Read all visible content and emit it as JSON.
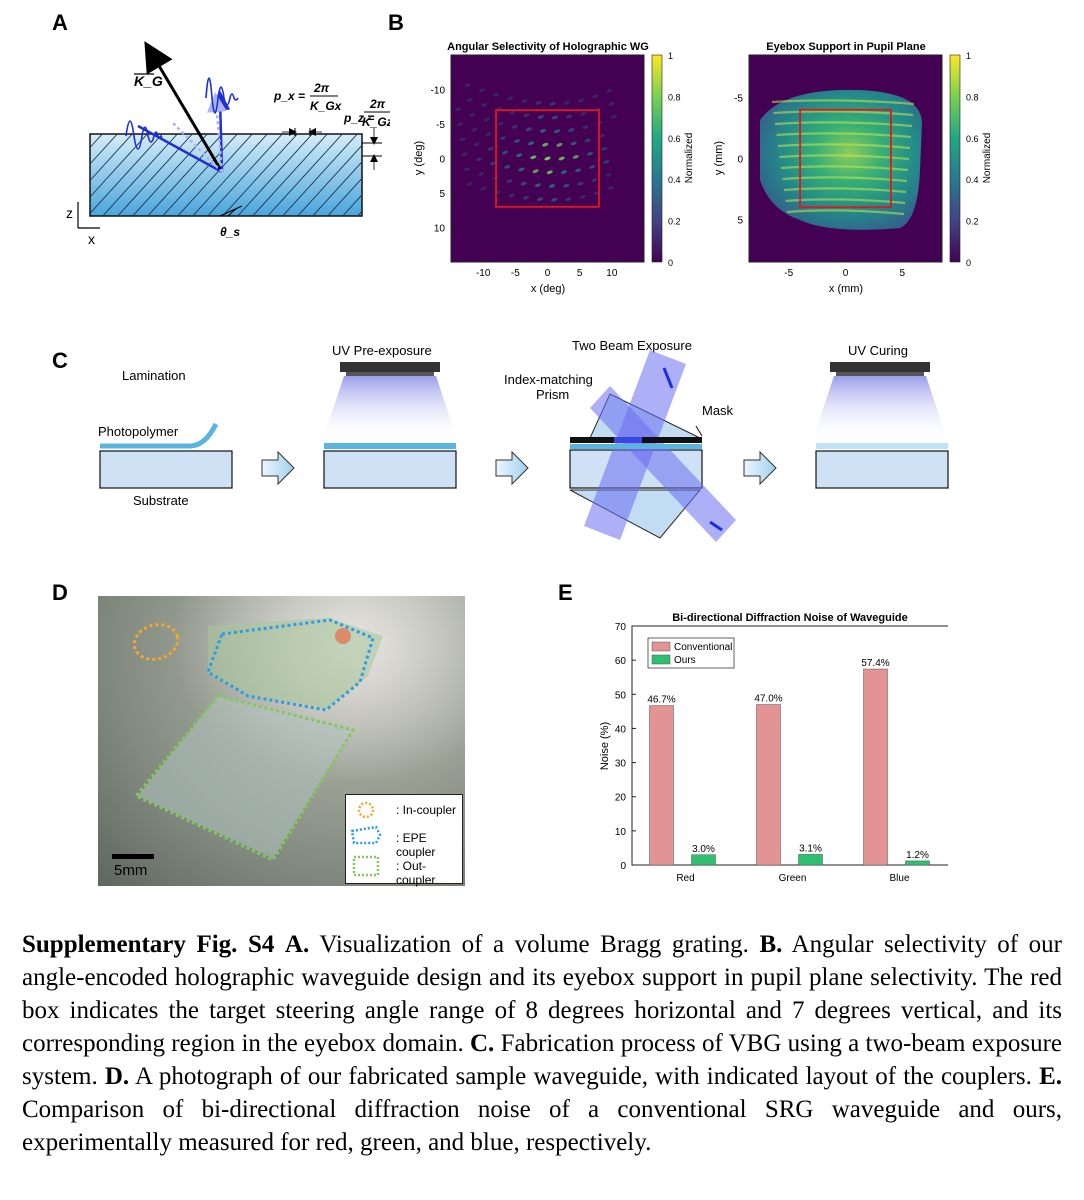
{
  "panels": {
    "A": {
      "letter": "A",
      "vector_label": "K_G",
      "px_label": "p_x =",
      "px_num": "2π",
      "px_den": "K_Gx",
      "pz_label": "p_z =",
      "pz_num": "2π",
      "pz_den": "K_Gz",
      "z_axis": "z",
      "x_axis": "x",
      "theta_label": "θ_s"
    },
    "B": {
      "letter": "B",
      "colorbar_label": "Normalized",
      "colorbar_ticks": [
        "1",
        "0.8",
        "0.6",
        "0.4",
        "0.2",
        "0"
      ]
    },
    "C": {
      "letter": "C",
      "lamination": "Lamination",
      "photopolymer": "Photopolymer",
      "substrate": "Substrate",
      "uv_pre": "UV Pre-exposure",
      "two_beam": "Two Beam Exposure",
      "prism_line1": "Index-matching",
      "prism_line2": "Prism",
      "mask": "Mask",
      "uv_curing": "UV Curing"
    },
    "D": {
      "letter": "D",
      "scale_label": "5mm",
      "legend": [
        ": In-coupler",
        ": EPE coupler",
        ": Out-coupler"
      ]
    },
    "E": {
      "letter": "E"
    }
  },
  "chart_data": [
    {
      "type": "heatmap",
      "title": "Angular Selectivity of Holographic WG",
      "xlabel": "x (deg)",
      "ylabel": "y (deg)",
      "xlim": [
        -15,
        15
      ],
      "ylim": [
        -15,
        15
      ],
      "xticks": [
        "-10",
        "-5",
        "0",
        "5",
        "10"
      ],
      "yticks": [
        "-10",
        "-5",
        "0",
        "5",
        "10"
      ],
      "colorbar_label": "Normalized",
      "colorbar_range": [
        0,
        1
      ],
      "red_box": {
        "x": [
          -8,
          8
        ],
        "y": [
          -7,
          7
        ]
      }
    },
    {
      "type": "heatmap",
      "title": "Eyebox Support in Pupil Plane",
      "xlabel": "x (mm)",
      "ylabel": "y (mm)",
      "xlim": [
        -8.5,
        8.5
      ],
      "ylim": [
        -8.5,
        8.5
      ],
      "xticks": [
        "-5",
        "0",
        "5"
      ],
      "yticks": [
        "-5",
        "0",
        "5"
      ],
      "colorbar_label": "Normalized",
      "colorbar_range": [
        0,
        1
      ],
      "red_box": {
        "x": [
          -4,
          4
        ],
        "y": [
          -4,
          4
        ]
      }
    },
    {
      "type": "bar",
      "title": "Bi-directional Diffraction Noise of Waveguide",
      "categories": [
        "Red",
        "Green",
        "Blue"
      ],
      "series": [
        {
          "name": "Conventional",
          "values": [
            46.7,
            47.0,
            57.4
          ],
          "labels": [
            "46.7%",
            "47.0%",
            "57.4%"
          ],
          "color": "#e29394"
        },
        {
          "name": "Ours",
          "values": [
            3.0,
            3.1,
            1.2
          ],
          "labels": [
            "3.0%",
            "3.1%",
            "1.2%"
          ],
          "color": "#2fbf71"
        }
      ],
      "xlabel": "",
      "ylabel": "Noise (%)",
      "ylim": [
        0,
        70
      ],
      "yticks": [
        "0",
        "10",
        "20",
        "30",
        "40",
        "50",
        "60",
        "70"
      ],
      "legend_position": "top-left"
    }
  ],
  "caption": {
    "label": "Supplementary Fig. S4",
    "a_label": "A.",
    "a_text": "Visualization of a volume Bragg grating.",
    "b_label": "B.",
    "b_text": "Angular selectivity of our angle-encoded holographic waveguide design and its eyebox support in pupil plane selectivity. The red box indicates the target steering angle range of 8 degrees horizontal and 7 degrees vertical, and its corresponding region in the eyebox domain.",
    "c_label": "C.",
    "c_text": "Fabrication process of VBG using a two-beam exposure system.",
    "d_label": "D.",
    "d_text": "A photograph of our fabricated sample waveguide, with indicated layout of the couplers.",
    "e_label": "E.",
    "e_text": "Comparison of bi-directional diffraction noise of a conventional SRG waveguide and ours, experimentally measured for red, green, and blue, respectively."
  },
  "colors": {
    "accent_red": "#e2171b",
    "substrate": "#cfe2f5",
    "photopolymer": "#5ab4e0",
    "beam": "#6a6ef0",
    "viridis_dark": "#440154",
    "viridis_yellow": "#fde725"
  }
}
